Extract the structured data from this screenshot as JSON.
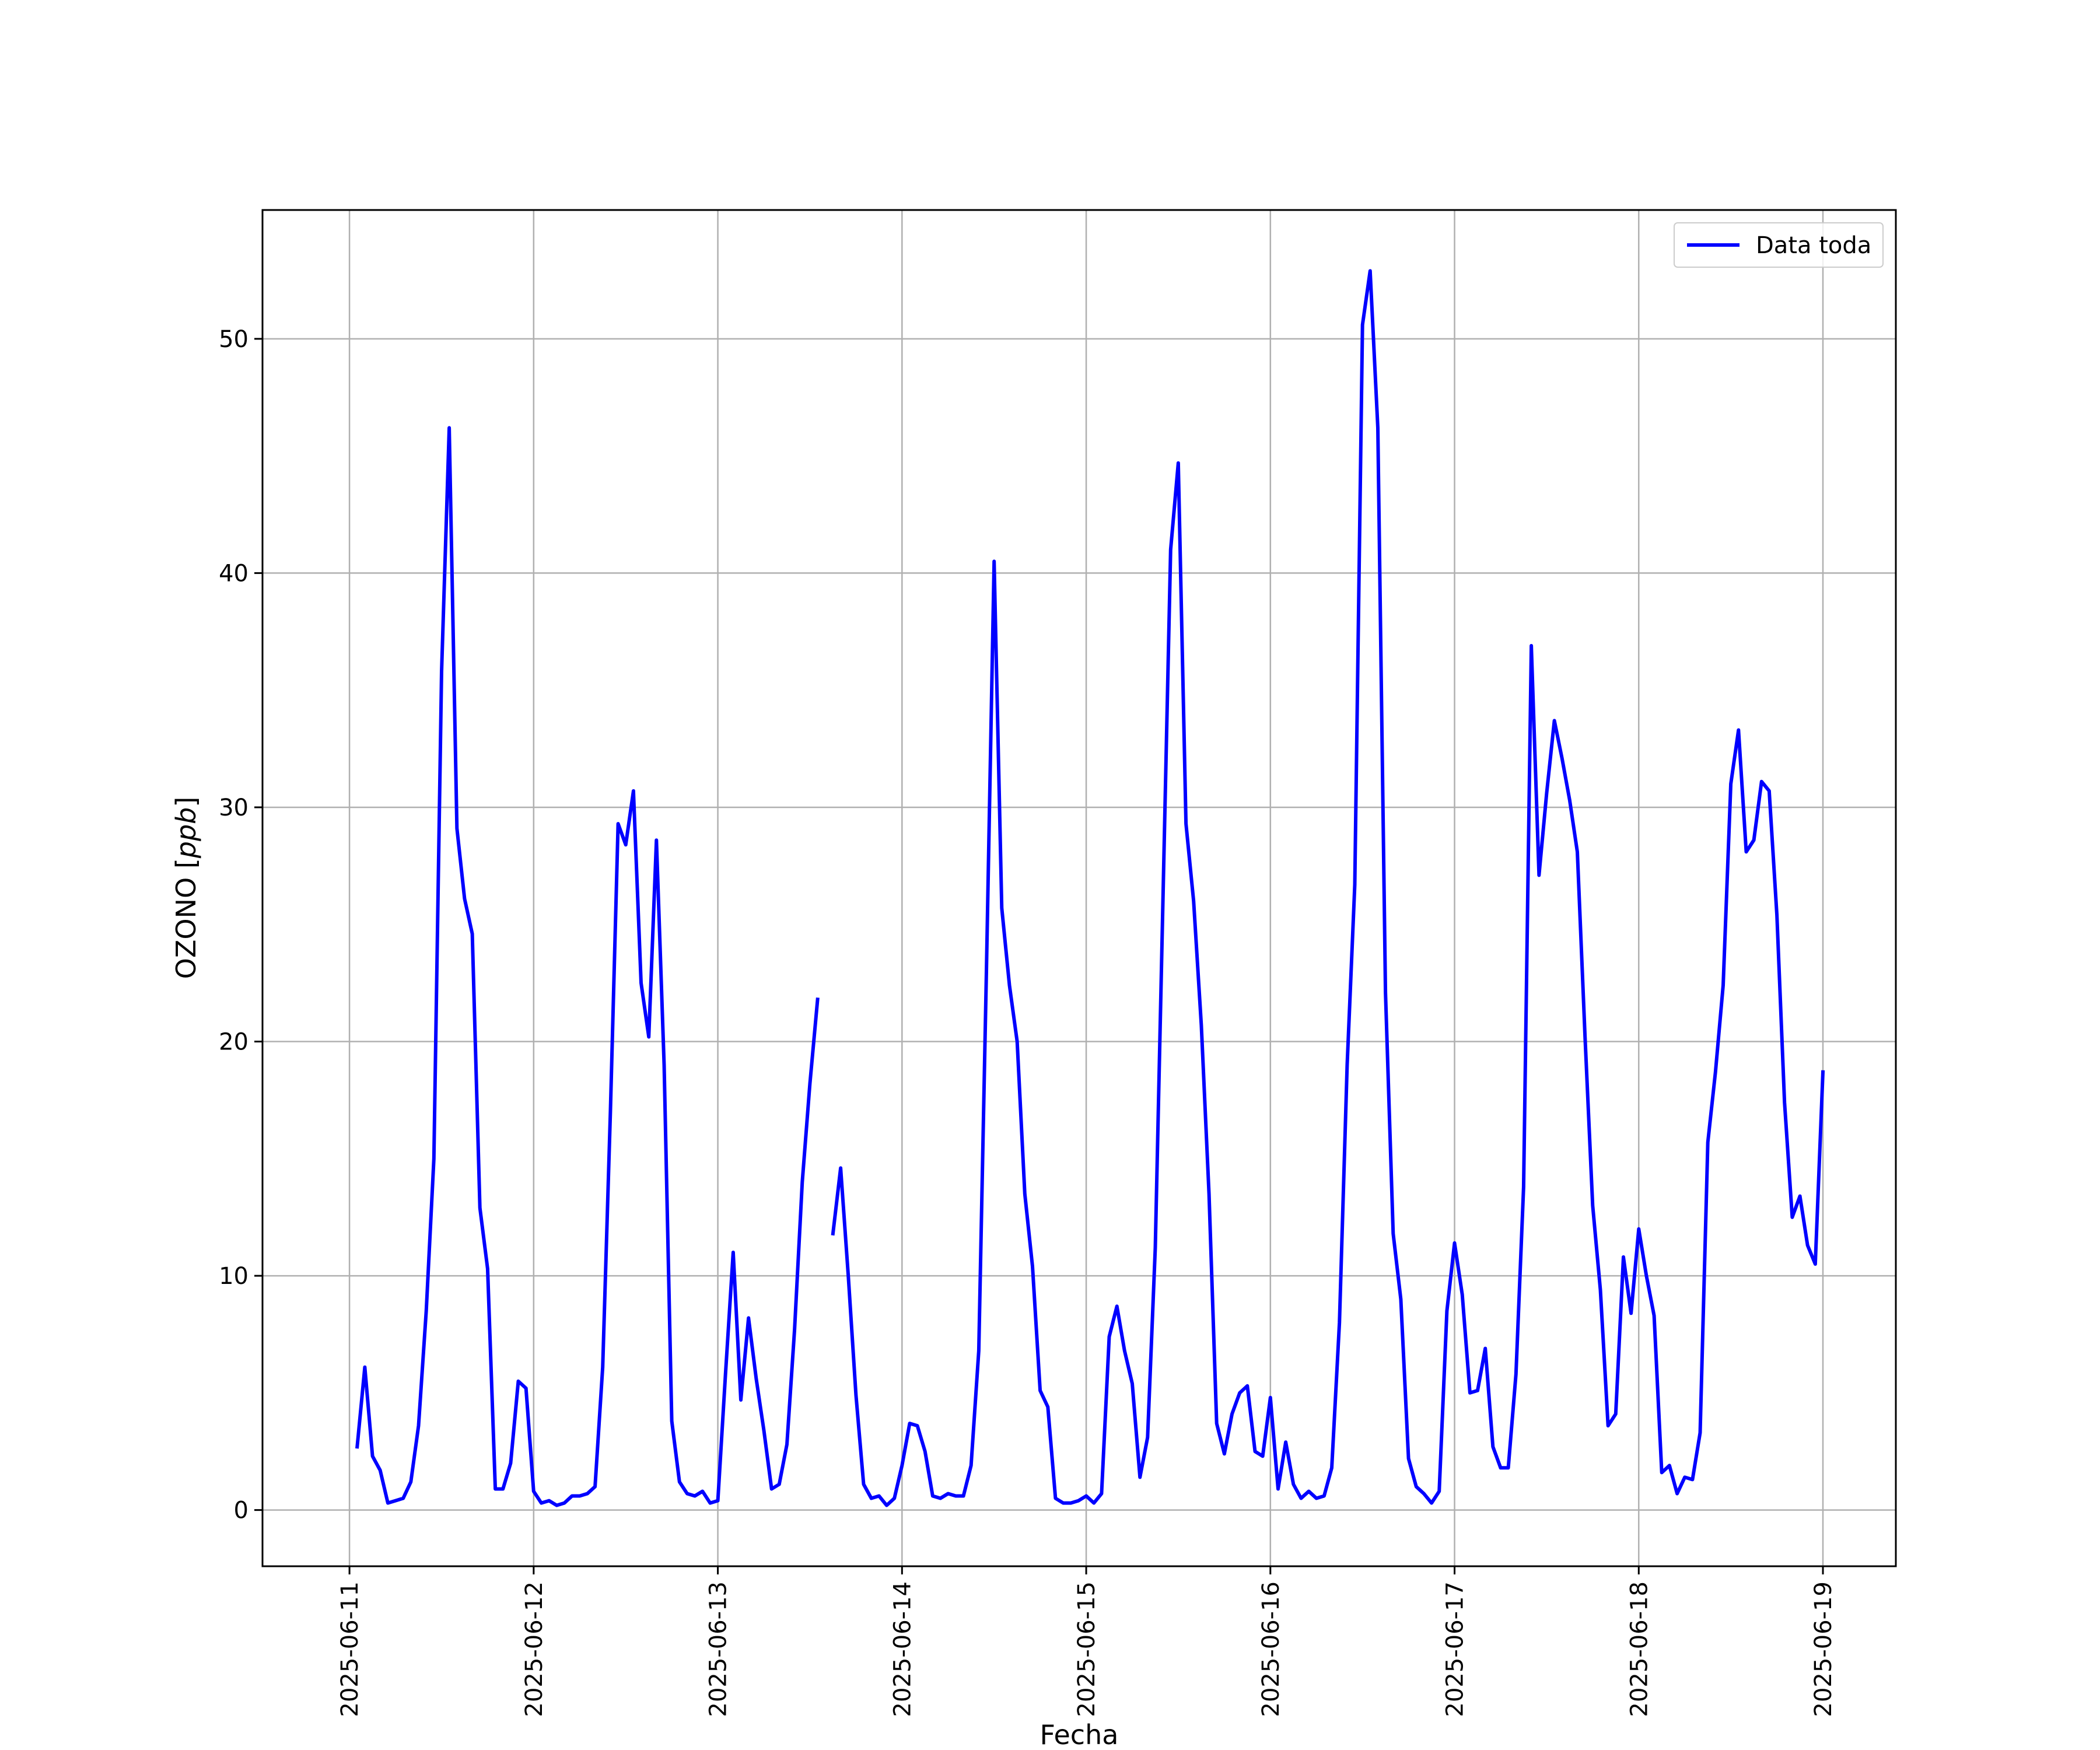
{
  "chart_data": {
    "type": "line",
    "xlabel": "Fecha",
    "ylabel_main": "OZONO ",
    "ylabel_unit": "ppb",
    "ylim": [
      -2.4,
      55.5
    ],
    "yticks": [
      0,
      10,
      20,
      30,
      40,
      50
    ],
    "xlim": [
      "2025-06-10 12:40",
      "2025-06-19 09:30"
    ],
    "xticks": [
      "2025-06-11",
      "2025-06-12",
      "2025-06-13",
      "2025-06-14",
      "2025-06-15",
      "2025-06-16",
      "2025-06-17",
      "2025-06-18",
      "2025-06-19"
    ],
    "grid": true,
    "legend_position": "top-right",
    "colors": {
      "series": "#0000ff",
      "grid": "#b0b0b0",
      "axes": "#000000"
    },
    "series": [
      {
        "name": "Data toda",
        "segments": [
          {
            "start": "2025-06-11 01:00",
            "step_hours": 1,
            "values": [
              2.7,
              6.1,
              2.3,
              1.7,
              0.3,
              0.4,
              0.5,
              1.2,
              3.6,
              8.5,
              15.0,
              35.8,
              46.2,
              29.1,
              26.1,
              24.6,
              12.9,
              10.3,
              0.9,
              0.9,
              2.0,
              5.5,
              5.2,
              0.8,
              0.3,
              0.4,
              0.2,
              0.3,
              0.6,
              0.6,
              0.7,
              1.0,
              6.1,
              17.0,
              29.3,
              28.4,
              30.7,
              22.5,
              20.2,
              28.6,
              19.0,
              3.8,
              1.2,
              0.7,
              0.6,
              0.8,
              0.3,
              0.4,
              5.8,
              11.0,
              4.7,
              8.2,
              5.6,
              3.4,
              0.9,
              1.1,
              2.8,
              7.7,
              14.0,
              18.2,
              21.8
            ]
          },
          {
            "start": "2025-06-13 15:00",
            "step_hours": 1,
            "values": [
              11.8,
              14.6,
              10.0,
              4.9,
              1.1,
              0.5,
              0.6,
              0.2,
              0.5,
              1.9,
              3.7,
              3.6,
              2.5,
              0.6,
              0.5,
              0.7,
              0.6,
              0.6,
              1.9,
              6.8,
              23.0,
              40.5,
              25.7,
              22.4,
              20.0,
              13.5,
              10.4,
              5.1,
              4.4,
              0.5,
              0.3,
              0.3,
              0.4,
              0.6,
              0.3,
              0.7,
              7.4,
              8.7,
              6.8,
              5.4,
              1.4,
              3.1,
              11.2,
              26.0,
              41.0,
              44.7,
              29.3,
              26.0,
              20.7,
              13.5,
              3.7,
              2.4,
              4.1,
              5.0,
              5.3,
              2.5,
              2.3,
              4.8,
              0.9,
              2.9,
              1.1,
              0.5,
              0.8,
              0.5,
              0.6,
              1.8,
              8.0,
              19.0,
              26.7,
              50.6,
              52.9,
              46.2,
              22.1,
              11.8,
              9.0,
              2.2,
              1.0,
              0.7,
              0.3,
              0.8,
              8.5,
              11.4,
              9.2,
              5.0,
              5.1,
              6.9,
              2.7,
              1.8,
              1.8,
              5.8,
              13.8,
              36.9,
              27.1,
              30.6,
              33.7,
              32.1,
              30.3,
              28.1,
              20.2,
              13.0,
              9.4,
              3.6,
              4.1,
              10.8,
              8.4,
              12.0,
              10.0,
              8.3,
              1.6,
              1.9,
              0.7,
              1.4,
              1.3,
              3.3,
              15.7,
              18.7,
              22.4,
              31.0,
              33.3,
              28.1,
              28.6,
              31.1,
              30.7,
              25.4,
              17.4,
              12.5,
              13.4,
              11.3,
              10.5,
              18.7
            ]
          }
        ]
      }
    ]
  }
}
